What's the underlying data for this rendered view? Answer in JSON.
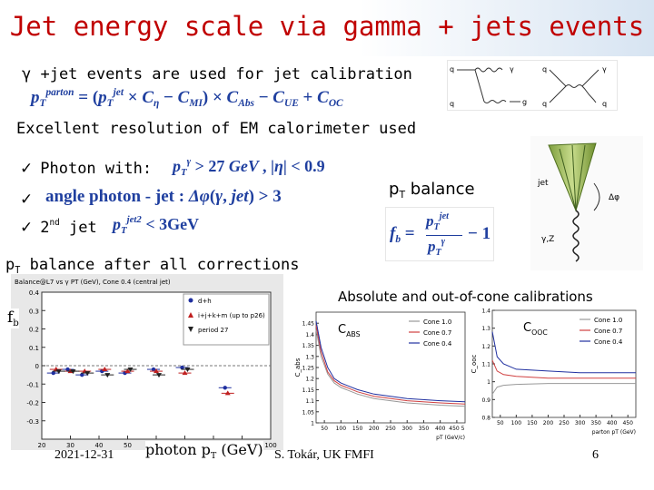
{
  "slide": {
    "title": "Jet energy scale via gamma + jets events",
    "line1": "γ +jet events are used for jet calibration",
    "line2": "Excellent resolution of EM calorimeter used",
    "bullets": [
      {
        "mark": "ü",
        "text": "Photon with:"
      },
      {
        "mark": "ü",
        "text": ""
      },
      {
        "mark": "ü",
        "text": "2nd jet"
      }
    ],
    "pt_balance_label": "pT balance",
    "after_corrections": "pT balance after all corrections",
    "fb_label": "fb",
    "abs_ooc_title": "Absolute and out-of-cone calibrations",
    "cabs_label": "CABS",
    "cooc_label": "COOC",
    "photon_pt_label": "photon pT (GeV)"
  },
  "formulas": {
    "calib": "pT^parton = (pT^jet × C_η − C_MI) × C_Abs − C_UE + C_OC",
    "photon_cut": "pT^γ > 27 GeV , |η| < 0.9",
    "angle": "angle photon - jet : Δφ(γ, jet) > 3",
    "second_jet": "pT^jet2 < 3GeV",
    "fb": "fb = pT^jet / pT^γ − 1"
  },
  "diagram": {
    "labels": [
      "q",
      "γ",
      "q",
      "g",
      "q",
      "γ",
      "q",
      "q"
    ],
    "cone_labels": [
      "jet",
      "Δφ",
      "γ,Z"
    ]
  },
  "chart_data": [
    {
      "type": "scatter",
      "title": "Balance@L7 vs γ PT (GeV), Cone 0.4 (central jet)",
      "xlim": [
        20,
        100
      ],
      "ylim": [
        -0.4,
        0.4
      ],
      "y_ticks": [
        0.4,
        0.3,
        0.2,
        0.1,
        0,
        -0.1,
        -0.2,
        -0.3
      ],
      "x_ticks": [
        20,
        30,
        40,
        50,
        60,
        70,
        80,
        90,
        100
      ],
      "legend": [
        "d+h",
        "i+j+k+m (up to p26)",
        "period 27"
      ],
      "legend_position": "top-right",
      "series": [
        {
          "name": "d+h",
          "x": [
            25,
            30,
            35,
            42,
            50,
            60,
            70,
            85
          ],
          "y": [
            -0.04,
            -0.02,
            -0.05,
            -0.03,
            -0.04,
            -0.02,
            -0.01,
            -0.12
          ]
        },
        {
          "name": "i+j+k+m (up to p26)",
          "x": [
            25,
            30,
            35,
            42,
            50,
            60,
            70,
            85
          ],
          "y": [
            -0.02,
            -0.03,
            -0.03,
            -0.02,
            -0.03,
            -0.03,
            -0.04,
            -0.15
          ]
        },
        {
          "name": "period 27",
          "x": [
            25,
            30,
            35,
            42,
            50,
            60,
            70
          ],
          "y": [
            -0.03,
            -0.03,
            -0.04,
            -0.05,
            -0.02,
            -0.05,
            -0.02
          ]
        }
      ]
    },
    {
      "type": "line",
      "ylabel": "C_abs",
      "xlabel": "pT (GeV/c)",
      "xlim": [
        25,
        475
      ],
      "ylim": [
        1.0,
        1.5
      ],
      "y_ticks": [
        1.45,
        1.4,
        1.35,
        1.3,
        1.25,
        1.2,
        1.15,
        1.1,
        1.05,
        1
      ],
      "x_ticks": [
        50,
        100,
        150,
        200,
        250,
        300,
        350,
        400,
        450
      ],
      "x_tick_labels": [
        "50",
        "100",
        "150",
        "200",
        "250",
        "300",
        "350",
        "400",
        "450 5"
      ],
      "legend": [
        "Cone 1.0",
        "Cone 0.7",
        "Cone 0.4"
      ],
      "legend_position": "top-right",
      "series": [
        {
          "name": "Cone 1.0",
          "x": [
            25,
            40,
            60,
            80,
            100,
            150,
            200,
            300,
            400,
            475
          ],
          "y": [
            1.42,
            1.3,
            1.22,
            1.18,
            1.16,
            1.13,
            1.11,
            1.09,
            1.08,
            1.075
          ]
        },
        {
          "name": "Cone 0.7",
          "x": [
            25,
            40,
            60,
            80,
            100,
            150,
            200,
            300,
            400,
            475
          ],
          "y": [
            1.44,
            1.32,
            1.23,
            1.19,
            1.17,
            1.14,
            1.12,
            1.1,
            1.09,
            1.085
          ]
        },
        {
          "name": "Cone 0.4",
          "x": [
            25,
            40,
            60,
            80,
            100,
            150,
            200,
            300,
            400,
            475
          ],
          "y": [
            1.46,
            1.34,
            1.25,
            1.2,
            1.18,
            1.15,
            1.13,
            1.11,
            1.1,
            1.095
          ]
        }
      ],
      "colors": [
        "#999999",
        "#d04040",
        "#2030a0"
      ]
    },
    {
      "type": "line",
      "ylabel": "C_ooc",
      "xlabel": "parton pT (GeV)",
      "xlim": [
        25,
        475
      ],
      "ylim": [
        0.8,
        1.4
      ],
      "y_ticks": [
        1.4,
        1.3,
        1.2,
        1.1,
        1,
        0.9,
        0.8
      ],
      "x_ticks": [
        50,
        100,
        150,
        200,
        250,
        300,
        350,
        400,
        450
      ],
      "legend": [
        "Cone 1.0",
        "Cone 0.7",
        "Cone 0.4"
      ],
      "legend_position": "top-right",
      "series": [
        {
          "name": "Cone 1.0",
          "x": [
            25,
            40,
            60,
            100,
            200,
            300,
            475
          ],
          "y": [
            0.93,
            0.97,
            0.98,
            0.985,
            0.99,
            0.99,
            0.99
          ]
        },
        {
          "name": "Cone 0.7",
          "x": [
            25,
            40,
            60,
            100,
            200,
            300,
            475
          ],
          "y": [
            1.12,
            1.06,
            1.04,
            1.03,
            1.02,
            1.02,
            1.02
          ]
        },
        {
          "name": "Cone 0.4",
          "x": [
            25,
            40,
            60,
            100,
            200,
            300,
            475
          ],
          "y": [
            1.28,
            1.14,
            1.1,
            1.07,
            1.06,
            1.05,
            1.05
          ]
        }
      ],
      "colors": [
        "#999999",
        "#d04040",
        "#2030a0"
      ]
    }
  ],
  "footer": {
    "date": "2021-12-31",
    "author": "S. Tokár, UK FMFI",
    "page": "6"
  }
}
